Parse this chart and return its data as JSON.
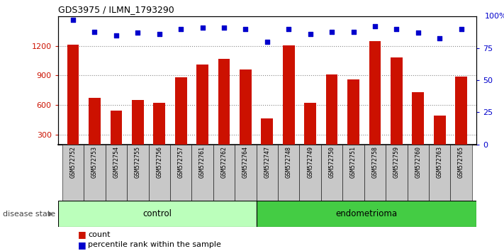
{
  "title": "GDS3975 / ILMN_1793290",
  "samples": [
    "GSM572752",
    "GSM572753",
    "GSM572754",
    "GSM572755",
    "GSM572756",
    "GSM572757",
    "GSM572761",
    "GSM572762",
    "GSM572764",
    "GSM572747",
    "GSM572748",
    "GSM572749",
    "GSM572750",
    "GSM572751",
    "GSM572758",
    "GSM572759",
    "GSM572760",
    "GSM572763",
    "GSM572765"
  ],
  "counts": [
    1210,
    670,
    545,
    650,
    620,
    880,
    1010,
    1070,
    960,
    460,
    1205,
    620,
    910,
    860,
    1250,
    1080,
    730,
    490,
    890
  ],
  "percentiles": [
    97,
    88,
    85,
    87,
    86,
    90,
    91,
    91,
    90,
    80,
    90,
    86,
    88,
    88,
    92,
    90,
    87,
    83,
    90
  ],
  "control_count": 9,
  "endometrioma_count": 10,
  "ylim_left": [
    200,
    1500
  ],
  "ylim_right": [
    0,
    100
  ],
  "yticks_left": [
    300,
    600,
    900,
    1200
  ],
  "ytick_right_labels_vals": [
    0,
    25,
    50,
    75
  ],
  "bar_color": "#cc1100",
  "dot_color": "#0000cc",
  "control_bg": "#bbffbb",
  "endometrioma_bg": "#44cc44",
  "ticklabel_bg": "#c8c8c8",
  "disease_state_label": "disease state",
  "control_label": "control",
  "endometrioma_label": "endometrioma",
  "legend_count": "count",
  "legend_percentile": "percentile rank within the sample",
  "dotted_grid_color": "#888888",
  "bar_width": 0.55,
  "right_top_label": "100%"
}
